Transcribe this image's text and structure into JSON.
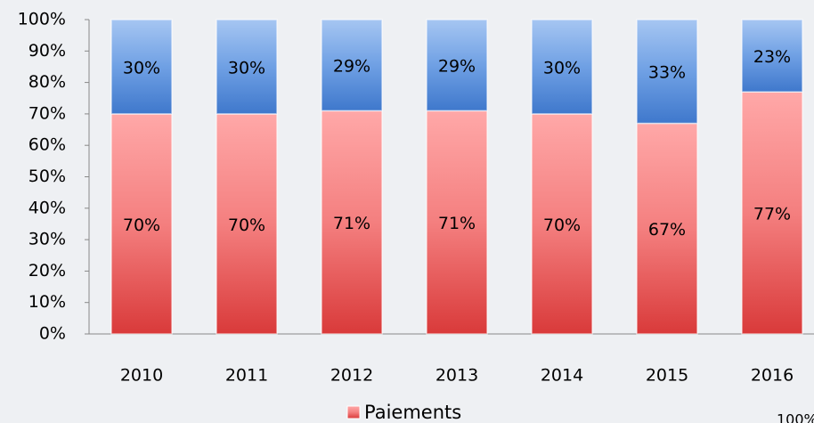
{
  "chart_data": {
    "type": "stacked_bar",
    "categories": [
      "2010",
      "2011",
      "2012",
      "2013",
      "2014",
      "2015",
      "2016"
    ],
    "series": [
      {
        "name": "Paiements",
        "color": "#e84a4a",
        "values": [
          70,
          70,
          71,
          71,
          70,
          67,
          77
        ],
        "value_labels": [
          "70%",
          "70%",
          "71%",
          "71%",
          "70%",
          "67%",
          "77%"
        ]
      },
      {
        "color": "#4a86d8",
        "values": [
          30,
          30,
          29,
          29,
          30,
          33,
          23
        ],
        "value_labels": [
          "30%",
          "30%",
          "29%",
          "29%",
          "30%",
          "33%",
          "23%"
        ]
      }
    ],
    "ylim": [
      0,
      100
    ],
    "yticks": [
      {
        "value": 0,
        "label": "0%"
      },
      {
        "value": 10,
        "label": "10%"
      },
      {
        "value": 20,
        "label": "20%"
      },
      {
        "value": 30,
        "label": "30%"
      },
      {
        "value": 40,
        "label": "40%"
      },
      {
        "value": 50,
        "label": "50%"
      },
      {
        "value": 60,
        "label": "60%"
      },
      {
        "value": 70,
        "label": "70%"
      },
      {
        "value": 80,
        "label": "80%"
      },
      {
        "value": 90,
        "label": "90%"
      },
      {
        "value": 100,
        "label": "100%"
      }
    ],
    "annotation": "100%"
  }
}
